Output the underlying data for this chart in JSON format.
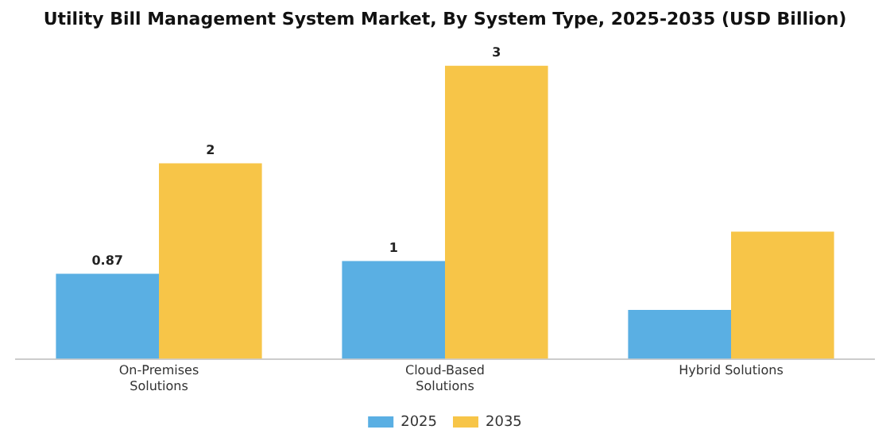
{
  "chart_data": {
    "type": "bar",
    "title": "Utility Bill Management System Market, By System Type, 2025-2035 (USD Billion)",
    "categories": [
      "On-Premises Solutions",
      "Cloud-Based Solutions",
      "Hybrid Solutions"
    ],
    "series": [
      {
        "name": "2025",
        "color": "#5aafe3",
        "values": [
          0.87,
          1,
          0.5
        ],
        "value_labels": [
          "0.87",
          "1",
          null
        ]
      },
      {
        "name": "2035",
        "color": "#f7c548",
        "values": [
          2,
          3,
          1.3
        ],
        "value_labels": [
          "2",
          "3",
          null
        ]
      }
    ],
    "legend": "bottom",
    "grid": false
  }
}
